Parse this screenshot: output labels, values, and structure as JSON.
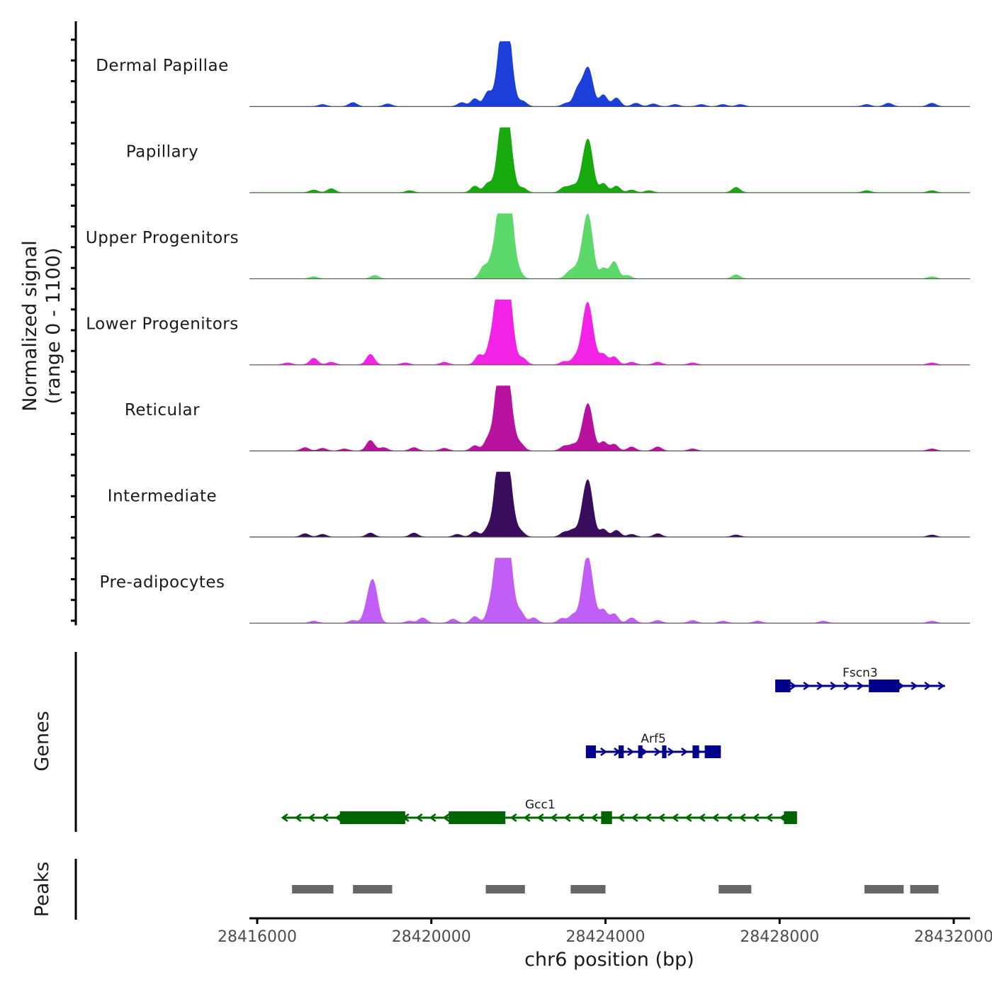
{
  "chart_data": {
    "type": "area",
    "title": "",
    "ylabel_line1": "Normalized signal",
    "ylabel_line2": "(range 0 - 1100)",
    "xlabel": "chr6 position (bp)",
    "genes_label": "Genes",
    "peaks_label": "Peaks",
    "xlim": [
      28416000,
      28432000
    ],
    "x_ticks": [
      {
        "value": 28416000,
        "label": "28416000"
      },
      {
        "value": 28420000,
        "label": "28420000"
      },
      {
        "value": 28424000,
        "label": "28424000"
      },
      {
        "value": 28428000,
        "label": "28428000"
      },
      {
        "value": 28432000,
        "label": "28432000"
      }
    ],
    "ylim": [
      0,
      1100
    ],
    "tracks": [
      {
        "name": "Dermal Papillae",
        "color": "#1d3fd9",
        "peaks": [
          [
            28417500,
            3
          ],
          [
            28418200,
            6
          ],
          [
            28419000,
            4
          ],
          [
            28420700,
            6
          ],
          [
            28421000,
            12
          ],
          [
            28421300,
            22
          ],
          [
            28421600,
            62
          ],
          [
            28421700,
            78
          ],
          [
            28421780,
            52
          ],
          [
            28422100,
            8
          ],
          [
            28423100,
            5
          ],
          [
            28423350,
            22
          ],
          [
            28423550,
            42
          ],
          [
            28423650,
            26
          ],
          [
            28423950,
            18
          ],
          [
            28424250,
            13
          ],
          [
            28424700,
            5
          ],
          [
            28425100,
            4
          ],
          [
            28425600,
            3
          ],
          [
            28426200,
            3
          ],
          [
            28426700,
            3
          ],
          [
            28427100,
            3
          ],
          [
            28430000,
            3
          ],
          [
            28430500,
            5
          ],
          [
            28431500,
            5
          ]
        ]
      },
      {
        "name": "Papillary",
        "color": "#18a90f",
        "peaks": [
          [
            28417300,
            4
          ],
          [
            28417700,
            6
          ],
          [
            28419500,
            3
          ],
          [
            28421000,
            10
          ],
          [
            28421300,
            14
          ],
          [
            28421600,
            60
          ],
          [
            28421700,
            70
          ],
          [
            28421780,
            46
          ],
          [
            28422100,
            7
          ],
          [
            28423050,
            8
          ],
          [
            28423250,
            10
          ],
          [
            28423550,
            58
          ],
          [
            28423650,
            35
          ],
          [
            28423950,
            14
          ],
          [
            28424250,
            10
          ],
          [
            28424600,
            4
          ],
          [
            28425000,
            3
          ],
          [
            28427000,
            8
          ],
          [
            28430000,
            3
          ],
          [
            28431500,
            3
          ]
        ]
      },
      {
        "name": "Upper Progenitors",
        "color": "#5dd96b",
        "peaks": [
          [
            28417300,
            3
          ],
          [
            28418700,
            5
          ],
          [
            28421200,
            18
          ],
          [
            28421400,
            25
          ],
          [
            28421600,
            90
          ],
          [
            28421700,
            98
          ],
          [
            28421780,
            80
          ],
          [
            28422000,
            10
          ],
          [
            28423150,
            8
          ],
          [
            28423300,
            12
          ],
          [
            28423550,
            72
          ],
          [
            28423650,
            40
          ],
          [
            28423950,
            16
          ],
          [
            28424200,
            26
          ],
          [
            28424500,
            5
          ],
          [
            28427000,
            6
          ],
          [
            28431500,
            3
          ]
        ]
      },
      {
        "name": "Lower Progenitors",
        "color": "#f222e6",
        "peaks": [
          [
            28416700,
            3
          ],
          [
            28417300,
            10
          ],
          [
            28417700,
            4
          ],
          [
            28418600,
            16
          ],
          [
            28419400,
            3
          ],
          [
            28420300,
            4
          ],
          [
            28421100,
            15
          ],
          [
            28421350,
            25
          ],
          [
            28421550,
            90
          ],
          [
            28421650,
            100
          ],
          [
            28421780,
            80
          ],
          [
            28422100,
            10
          ],
          [
            28423050,
            5
          ],
          [
            28423300,
            10
          ],
          [
            28423550,
            62
          ],
          [
            28423650,
            44
          ],
          [
            28423950,
            16
          ],
          [
            28424200,
            12
          ],
          [
            28424600,
            4
          ],
          [
            28425200,
            4
          ],
          [
            28426000,
            3
          ],
          [
            28431500,
            3
          ]
        ]
      },
      {
        "name": "Reticular",
        "color": "#b8139f",
        "peaks": [
          [
            28417100,
            5
          ],
          [
            28417500,
            4
          ],
          [
            28418000,
            3
          ],
          [
            28418600,
            16
          ],
          [
            28418900,
            5
          ],
          [
            28419600,
            5
          ],
          [
            28420300,
            4
          ],
          [
            28421000,
            8
          ],
          [
            28421300,
            17
          ],
          [
            28421550,
            78
          ],
          [
            28421650,
            88
          ],
          [
            28421780,
            66
          ],
          [
            28422050,
            10
          ],
          [
            28423050,
            7
          ],
          [
            28423250,
            9
          ],
          [
            28423550,
            50
          ],
          [
            28423650,
            32
          ],
          [
            28423950,
            14
          ],
          [
            28424200,
            10
          ],
          [
            28424600,
            6
          ],
          [
            28425200,
            6
          ],
          [
            28426000,
            3
          ],
          [
            28431500,
            3
          ]
        ]
      },
      {
        "name": "Intermediate",
        "color": "#3a0c5c",
        "peaks": [
          [
            28417100,
            5
          ],
          [
            28417500,
            4
          ],
          [
            28418600,
            6
          ],
          [
            28419600,
            6
          ],
          [
            28420600,
            4
          ],
          [
            28421000,
            8
          ],
          [
            28421300,
            12
          ],
          [
            28421550,
            80
          ],
          [
            28421650,
            88
          ],
          [
            28421780,
            68
          ],
          [
            28422050,
            8
          ],
          [
            28423050,
            7
          ],
          [
            28423250,
            10
          ],
          [
            28423550,
            64
          ],
          [
            28423650,
            35
          ],
          [
            28423950,
            12
          ],
          [
            28424250,
            10
          ],
          [
            28424600,
            4
          ],
          [
            28425200,
            5
          ],
          [
            28427000,
            3
          ],
          [
            28431500,
            3
          ]
        ]
      },
      {
        "name": "Pre-adipocytes",
        "color": "#c05ef5",
        "peaks": [
          [
            28417300,
            3
          ],
          [
            28418200,
            4
          ],
          [
            28418600,
            46
          ],
          [
            28418700,
            30
          ],
          [
            28419500,
            3
          ],
          [
            28419800,
            8
          ],
          [
            28420500,
            6
          ],
          [
            28421000,
            10
          ],
          [
            28421350,
            20
          ],
          [
            28421550,
            92
          ],
          [
            28421650,
            100
          ],
          [
            28421780,
            80
          ],
          [
            28422050,
            16
          ],
          [
            28422350,
            8
          ],
          [
            28423000,
            7
          ],
          [
            28423250,
            12
          ],
          [
            28423550,
            70
          ],
          [
            28423650,
            44
          ],
          [
            28423950,
            20
          ],
          [
            28424200,
            14
          ],
          [
            28424600,
            8
          ],
          [
            28425200,
            4
          ],
          [
            28426000,
            4
          ],
          [
            28426700,
            3
          ],
          [
            28427500,
            3
          ],
          [
            28429000,
            3
          ],
          [
            28431500,
            3
          ]
        ]
      }
    ],
    "genes": [
      {
        "name": "Fscn3",
        "strand": "+",
        "color": "#00008b",
        "start": 28427900,
        "end": 28431800,
        "exons": [
          [
            28427900,
            28428250
          ],
          [
            28430050,
            28430750
          ]
        ]
      },
      {
        "name": "Arf5",
        "strand": "+",
        "color": "#00008b",
        "start": 28423550,
        "end": 28426650,
        "exons": [
          [
            28423550,
            28423780
          ],
          [
            28424300,
            28424420
          ],
          [
            28424750,
            28424850
          ],
          [
            28425300,
            28425400
          ],
          [
            28426000,
            28426150
          ],
          [
            28426280,
            28426650
          ]
        ]
      },
      {
        "name": "Gcc1",
        "strand": "-",
        "color": "#006400",
        "start": 28416600,
        "end": 28428400,
        "exons": [
          [
            28417900,
            28419400
          ],
          [
            28420400,
            28421700
          ],
          [
            28423900,
            28424150
          ],
          [
            28428100,
            28428400
          ]
        ]
      }
    ],
    "peak_regions": [
      [
        28416800,
        28417750
      ],
      [
        28418200,
        28419100
      ],
      [
        28421250,
        28422150
      ],
      [
        28423200,
        28424000
      ],
      [
        28426600,
        28427350
      ],
      [
        28429950,
        28430850
      ],
      [
        28431000,
        28431650
      ]
    ]
  }
}
